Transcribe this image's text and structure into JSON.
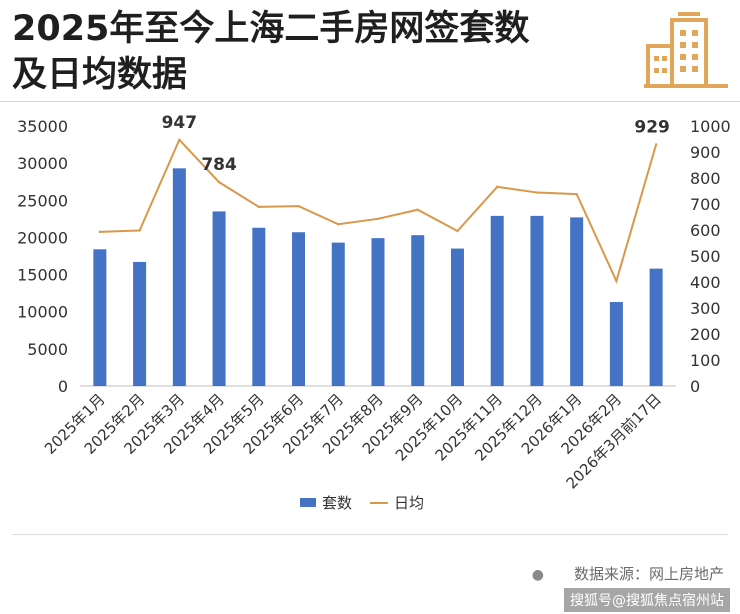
{
  "header": {
    "title_line1": "2025年至今上海二手房网签套数",
    "title_line2": "及日均数据",
    "logo_icon": "building-icon"
  },
  "colors": {
    "bar": "#4472C4",
    "line": "#D9984A",
    "logo": "#E2A65A"
  },
  "chart_data": {
    "type": "bar",
    "categories": [
      "2025年1月",
      "2025年2月",
      "2025年3月",
      "2025年4月",
      "2025年5月",
      "2025年6月",
      "2025年7月",
      "2025年8月",
      "2025年9月",
      "2025年10月",
      "2025年11月",
      "2025年12月",
      "2026年1月",
      "2026年2月",
      "2026年3月前17日"
    ],
    "series": [
      {
        "name": "套数",
        "type": "bar",
        "axis": "left",
        "values": [
          18400,
          16700,
          29300,
          23500,
          21300,
          20700,
          19300,
          19900,
          20300,
          18500,
          22900,
          22900,
          22700,
          11300,
          15800
        ]
      },
      {
        "name": "日均",
        "type": "line",
        "axis": "right",
        "values": [
          593,
          598,
          947,
          784,
          689,
          692,
          622,
          643,
          678,
          596,
          766,
          744,
          738,
          404,
          929
        ]
      }
    ],
    "data_labels": [
      {
        "series": "日均",
        "index": 2,
        "text": "947"
      },
      {
        "series": "日均",
        "index": 3,
        "text": "784"
      },
      {
        "series": "日均",
        "index": 14,
        "text": "929"
      }
    ],
    "y_left": {
      "min": 0,
      "max": 35000,
      "ticks": [
        "0",
        "5000",
        "10000",
        "15000",
        "20000",
        "25000",
        "30000",
        "35000"
      ]
    },
    "y_right": {
      "min": 0,
      "max": 1000,
      "ticks": [
        "0",
        "100",
        "200",
        "300",
        "400",
        "500",
        "600",
        "700",
        "800",
        "900",
        "1000"
      ]
    },
    "grid": false,
    "legend": {
      "position": "bottom",
      "items": [
        "套数",
        "日均"
      ]
    }
  },
  "footer": {
    "source": "数据来源：网上房地产",
    "watermark": "搜狐号@搜狐焦点宿州站"
  }
}
